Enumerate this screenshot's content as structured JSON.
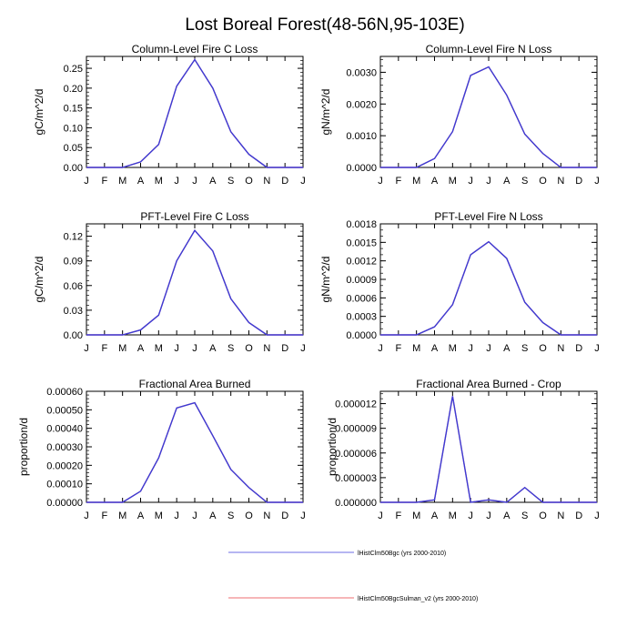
{
  "title": "Lost Boreal Forest(48-56N,95-103E)",
  "colors": {
    "series_1": "#3b3bd6",
    "series_2": "#e8373c",
    "axis": "#000000"
  },
  "chart_data": [
    {
      "type": "line",
      "title": "Column-Level Fire C Loss",
      "ylabel": "gC/m^2/d",
      "categories": [
        "J",
        "F",
        "M",
        "A",
        "M",
        "J",
        "J",
        "A",
        "S",
        "O",
        "N",
        "D",
        "J"
      ],
      "ylim": [
        0,
        0.28
      ],
      "yticks": [
        "0.00",
        "0.05",
        "0.10",
        "0.15",
        "0.20",
        "0.25"
      ],
      "yminor": 0.01,
      "series": [
        {
          "name": "lHistClm50Bgc (yrs 2000-2010)",
          "values": [
            0,
            0,
            0,
            0.014,
            0.058,
            0.205,
            0.272,
            0.2,
            0.09,
            0.033,
            0,
            0,
            0
          ]
        },
        {
          "name": "lHistClm50BgcSulman_v2 (yrs 2000-2010)",
          "values": [
            0,
            0,
            0,
            0.014,
            0.058,
            0.205,
            0.272,
            0.2,
            0.09,
            0.033,
            0,
            0,
            0
          ]
        }
      ]
    },
    {
      "type": "line",
      "title": "Column-Level Fire N Loss",
      "ylabel": "gN/m^2/d",
      "categories": [
        "J",
        "F",
        "M",
        "A",
        "M",
        "J",
        "J",
        "A",
        "S",
        "O",
        "N",
        "D",
        "J"
      ],
      "ylim": [
        0,
        0.0035
      ],
      "yticks": [
        "0.0000",
        "0.0010",
        "0.0020",
        "0.0030"
      ],
      "yminor": 0.0002,
      "series": [
        {
          "name": "lHistClm50Bgc (yrs 2000-2010)",
          "values": [
            0,
            0,
            0,
            0.00028,
            0.00113,
            0.0029,
            0.00317,
            0.00228,
            0.00105,
            0.00044,
            0,
            0,
            0
          ]
        },
        {
          "name": "lHistClm50BgcSulman_v2 (yrs 2000-2010)",
          "values": [
            0,
            0,
            0,
            0.00028,
            0.00113,
            0.0029,
            0.00317,
            0.00228,
            0.00105,
            0.00044,
            0,
            0,
            0
          ]
        }
      ]
    },
    {
      "type": "line",
      "title": "PFT-Level Fire C Loss",
      "ylabel": "gC/m^2/d",
      "categories": [
        "J",
        "F",
        "M",
        "A",
        "M",
        "J",
        "J",
        "A",
        "S",
        "O",
        "N",
        "D",
        "J"
      ],
      "ylim": [
        0,
        0.135
      ],
      "yticks": [
        "0.00",
        "0.03",
        "0.06",
        "0.09",
        "0.12"
      ],
      "yminor": 0.006,
      "series": [
        {
          "name": "lHistClm50Bgc (yrs 2000-2010)",
          "values": [
            0,
            0,
            0,
            0.006,
            0.024,
            0.09,
            0.127,
            0.102,
            0.044,
            0.015,
            0,
            0,
            0
          ]
        },
        {
          "name": "lHistClm50BgcSulman_v2 (yrs 2000-2010)",
          "values": [
            0,
            0,
            0,
            0.006,
            0.024,
            0.09,
            0.127,
            0.102,
            0.044,
            0.015,
            0,
            0,
            0
          ]
        }
      ]
    },
    {
      "type": "line",
      "title": "PFT-Level Fire N Loss",
      "ylabel": "gN/m^2/d",
      "categories": [
        "J",
        "F",
        "M",
        "A",
        "M",
        "J",
        "J",
        "A",
        "S",
        "O",
        "N",
        "D",
        "J"
      ],
      "ylim": [
        0,
        0.0018
      ],
      "yticks": [
        "0.0000",
        "0.0003",
        "0.0006",
        "0.0009",
        "0.0012",
        "0.0015",
        "0.0018"
      ],
      "yminor": 0.0001,
      "series": [
        {
          "name": "lHistClm50Bgc (yrs 2000-2010)",
          "values": [
            0,
            0,
            0,
            0.00013,
            0.00049,
            0.0013,
            0.00151,
            0.00124,
            0.00053,
            0.0002,
            0,
            0,
            0
          ]
        },
        {
          "name": "lHistClm50BgcSulman_v2 (yrs 2000-2010)",
          "values": [
            0,
            0,
            0,
            0.00013,
            0.00049,
            0.0013,
            0.00151,
            0.00124,
            0.00053,
            0.0002,
            0,
            0,
            0
          ]
        }
      ]
    },
    {
      "type": "line",
      "title": "Fractional Area Burned",
      "ylabel": "proportion/d",
      "categories": [
        "J",
        "F",
        "M",
        "A",
        "M",
        "J",
        "J",
        "A",
        "S",
        "O",
        "N",
        "D",
        "J"
      ],
      "ylim": [
        0,
        0.0006
      ],
      "yticks": [
        "0.00000",
        "0.00010",
        "0.00020",
        "0.00030",
        "0.00040",
        "0.00050",
        "0.00060"
      ],
      "yminor": 2e-05,
      "series": [
        {
          "name": "lHistClm50Bgc (yrs 2000-2010)",
          "values": [
            0,
            0,
            0,
            6e-05,
            0.00024,
            0.00051,
            0.000538,
            0.00036,
            0.000178,
            8e-05,
            0,
            0,
            0
          ]
        },
        {
          "name": "lHistClm50BgcSulman_v2 (yrs 2000-2010)",
          "values": [
            0,
            0,
            0,
            6e-05,
            0.00024,
            0.00051,
            0.000538,
            0.00036,
            0.000178,
            8e-05,
            0,
            0,
            0
          ]
        }
      ]
    },
    {
      "type": "line",
      "title": "Fractional Area Burned - Crop",
      "ylabel": "proportion/d",
      "categories": [
        "J",
        "F",
        "M",
        "A",
        "M",
        "J",
        "J",
        "A",
        "S",
        "O",
        "N",
        "D",
        "J"
      ],
      "ylim": [
        0,
        1.35e-05
      ],
      "yticks": [
        "0.000000",
        "0.000003",
        "0.000006",
        "0.000009",
        "0.000012"
      ],
      "yminor": 6e-07,
      "series": [
        {
          "name": "lHistClm50Bgc (yrs 2000-2010)",
          "values": [
            0,
            0,
            0,
            3e-07,
            1.29e-05,
            0,
            3e-07,
            0,
            1.8e-06,
            0,
            0,
            0,
            0
          ]
        },
        {
          "name": "lHistClm50BgcSulman_v2 (yrs 2000-2010)",
          "values": [
            0,
            0,
            0,
            3e-07,
            1.29e-05,
            0,
            3e-07,
            0,
            1.8e-06,
            0,
            0,
            0,
            0
          ]
        }
      ]
    }
  ],
  "legend": [
    {
      "label": "lHistClm50Bgc (yrs 2000-2010)",
      "color": "#8b8bea"
    },
    {
      "label": "lHistClm50BgcSulman_v2 (yrs 2000-2010)",
      "color": "#f08a8e"
    }
  ]
}
